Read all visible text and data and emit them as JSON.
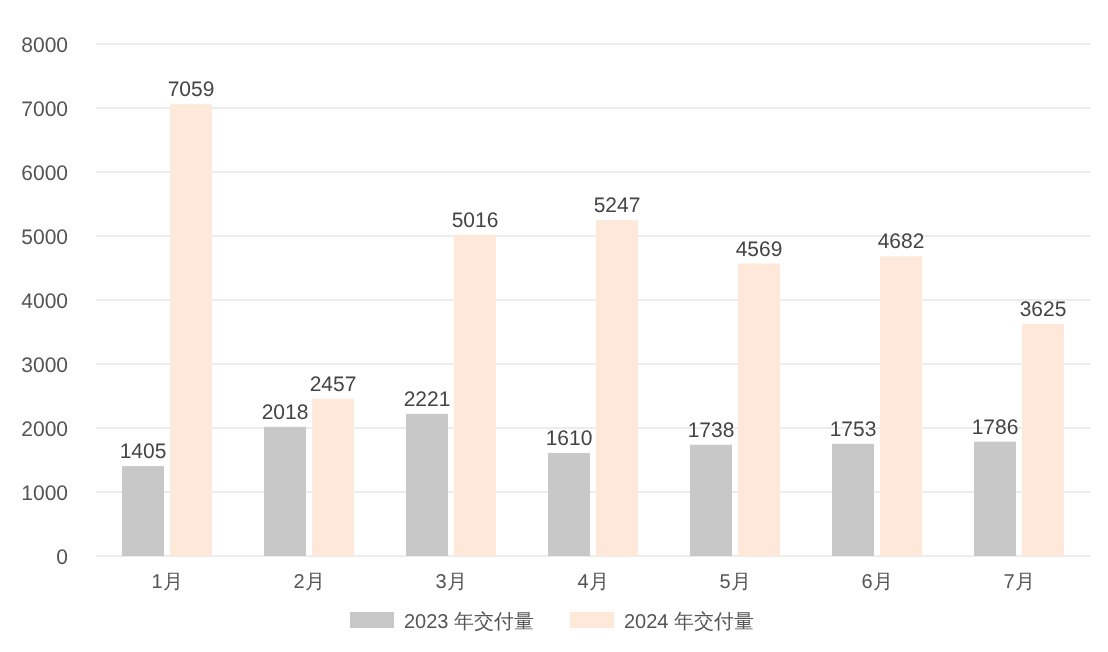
{
  "chart_data": {
    "type": "bar",
    "categories": [
      "1月",
      "2月",
      "3月",
      "4月",
      "5月",
      "6月",
      "7月"
    ],
    "series": [
      {
        "name": "2023 年交付量",
        "color": "#c8c8c8",
        "values": [
          1405,
          2018,
          2221,
          1610,
          1738,
          1753,
          1786
        ]
      },
      {
        "name": "2024 年交付量",
        "color": "#fde8da",
        "values": [
          7059,
          2457,
          5016,
          5247,
          4569,
          4682,
          3625
        ]
      }
    ],
    "ylim": [
      0,
      8000
    ],
    "yticks": [
      0,
      1000,
      2000,
      3000,
      4000,
      5000,
      6000,
      7000,
      8000
    ],
    "grid": "y",
    "legend": "bottom",
    "data_labels": true
  }
}
